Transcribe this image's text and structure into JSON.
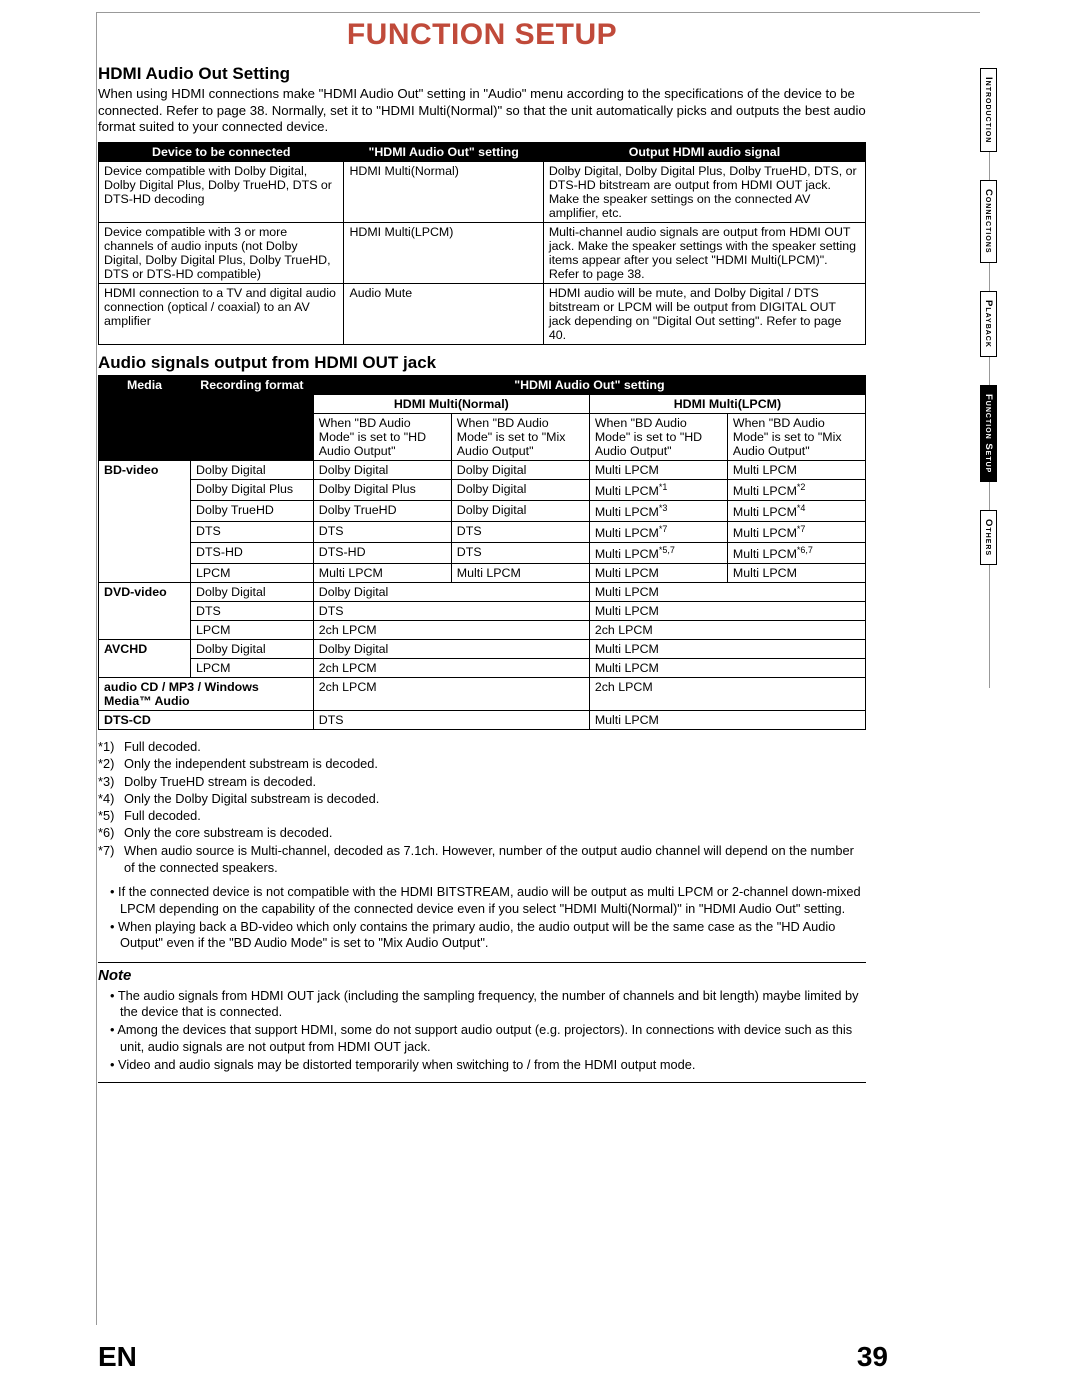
{
  "page": {
    "title": "FUNCTION SETUP",
    "lang_code": "EN",
    "page_number": "39"
  },
  "side_nav": {
    "items": [
      {
        "label": "Introduction",
        "active": false
      },
      {
        "label": "Connections",
        "active": false
      },
      {
        "label": "Playback",
        "active": false
      },
      {
        "label": "Function Setup",
        "active": true
      },
      {
        "label": "Others",
        "active": false
      }
    ]
  },
  "hdmi": {
    "heading": "HDMI Audio Out Setting",
    "intro": "When using HDMI connections make \"HDMI Audio Out\" setting in \"Audio\" menu according to the specifications of the device to be connected. Refer to page 38. Normally, set it to \"HDMI Multi(Normal)\" so that the unit automatically picks and outputs the best audio format suited to your connected device.",
    "table": {
      "headers": [
        "Device to be connected",
        "\"HDMI Audio Out\" setting",
        "Output HDMI audio signal"
      ],
      "rows": [
        {
          "c1": "Device compatible with Dolby Digital, Dolby Digital Plus, Dolby TrueHD, DTS or DTS-HD decoding",
          "c2": "HDMI Multi(Normal)",
          "c3": "Dolby Digital, Dolby Digital Plus, Dolby TrueHD, DTS, or DTS-HD bitstream are output from HDMI OUT jack. Make the speaker settings on the connected AV amplifier, etc."
        },
        {
          "c1": "Device compatible with 3 or more channels of audio inputs (not Dolby Digital, Dolby Digital Plus, Dolby TrueHD, DTS or DTS-HD compatible)",
          "c2": "HDMI Multi(LPCM)",
          "c3": "Multi-channel audio signals are output from HDMI OUT jack. Make the speaker settings with the speaker setting items appear after you select \"HDMI Multi(LPCM)\". Refer to page 38."
        },
        {
          "c1": "HDMI connection to a TV and digital audio connection (optical / coaxial) to an AV amplifier",
          "c2": "Audio Mute",
          "c3": "HDMI audio will be mute, and Dolby Digital / DTS bitstream or LPCM will be output from DIGITAL OUT jack depending on \"Digital Out setting\". Refer to page 40."
        }
      ]
    }
  },
  "signals": {
    "heading": "Audio signals output from HDMI OUT jack",
    "top_header": "\"HDMI Audio Out\" setting",
    "sub_headers": [
      "HDMI Multi(Normal)",
      "HDMI Multi(LPCM)"
    ],
    "col_media": "Media",
    "col_rec": "Recording format",
    "mode_hd": "When \"BD Audio Mode\" is set to \"HD Audio Output\"",
    "mode_mix": "When \"BD Audio Mode\" is set to \"Mix Audio Output\"",
    "groups": [
      {
        "media": "BD-video",
        "rows": [
          {
            "rec": "Dolby Digital",
            "n1": "Dolby Digital",
            "n2": "Dolby Digital",
            "l1": "Multi LPCM",
            "l2": "Multi LPCM"
          },
          {
            "rec": "Dolby Digital Plus",
            "n1": "Dolby Digital Plus",
            "n2": "Dolby Digital",
            "l1": "Multi LPCM",
            "l1s": "*1",
            "l2": "Multi LPCM",
            "l2s": "*2"
          },
          {
            "rec": "Dolby TrueHD",
            "n1": "Dolby TrueHD",
            "n2": "Dolby Digital",
            "l1": "Multi LPCM",
            "l1s": "*3",
            "l2": "Multi LPCM",
            "l2s": "*4"
          },
          {
            "rec": "DTS",
            "n1": "DTS",
            "n2": "DTS",
            "l1": "Multi LPCM",
            "l1s": "*7",
            "l2": "Multi LPCM",
            "l2s": "*7"
          },
          {
            "rec": "DTS-HD",
            "n1": "DTS-HD",
            "n2": "DTS",
            "l1": "Multi LPCM",
            "l1s": "*5,7",
            "l2": "Multi LPCM",
            "l2s": "*6,7"
          },
          {
            "rec": "LPCM",
            "n1": "Multi LPCM",
            "n2": "Multi LPCM",
            "l1": "Multi LPCM",
            "l2": "Multi LPCM"
          }
        ]
      },
      {
        "media": "DVD-video",
        "rows": [
          {
            "rec": "Dolby Digital",
            "n": "Dolby Digital",
            "l": "Multi LPCM"
          },
          {
            "rec": "DTS",
            "n": "DTS",
            "l": "Multi LPCM"
          },
          {
            "rec": "LPCM",
            "n": "2ch LPCM",
            "l": "2ch LPCM"
          }
        ]
      },
      {
        "media": "AVCHD",
        "rows": [
          {
            "rec": "Dolby Digital",
            "n": "Dolby Digital",
            "l": "Multi LPCM"
          },
          {
            "rec": "LPCM",
            "n": "2ch LPCM",
            "l": "Multi LPCM"
          }
        ]
      },
      {
        "media": "audio CD / MP3 / Windows Media™ Audio",
        "single": {
          "n": "2ch LPCM",
          "l": "2ch LPCM"
        }
      },
      {
        "media": "DTS-CD",
        "single": {
          "n": "DTS",
          "l": "Multi LPCM"
        }
      }
    ],
    "footnotes": [
      {
        "k": "*1)",
        "v": "Full decoded."
      },
      {
        "k": "*2)",
        "v": "Only the independent substream is decoded."
      },
      {
        "k": "*3)",
        "v": "Dolby TrueHD stream is decoded."
      },
      {
        "k": "*4)",
        "v": "Only the Dolby Digital substream is decoded."
      },
      {
        "k": "*5)",
        "v": "Full decoded."
      },
      {
        "k": "*6)",
        "v": "Only the core substream is decoded."
      },
      {
        "k": "*7)",
        "v": "When audio source is Multi-channel, decoded as 7.1ch. However, number of the output audio channel will depend on the number of the connected speakers."
      }
    ],
    "extra_bullets": [
      "If the connected device is not compatible with the HDMI BITSTREAM, audio will be output as multi LPCM or 2-channel down-mixed LPCM depending on the capability of the connected device even if you select \"HDMI Multi(Normal)\" in \"HDMI Audio Out\" setting.",
      "When playing back a BD-video which only contains the primary audio, the audio output will be the same case as the \"HD Audio Output\" even if the \"BD Audio Mode\" is set to \"Mix Audio Output\"."
    ]
  },
  "note_box": {
    "heading": "Note",
    "bullets": [
      "The audio signals from HDMI OUT jack (including the sampling frequency, the number of channels and bit length) maybe limited by the device that is connected.",
      "Among the devices that support HDMI, some do not support audio output (e.g. projectors). In connections with device such as this unit, audio signals are not output from HDMI OUT jack.",
      "Video and audio signals may be distorted temporarily when switching to / from the HDMI output mode."
    ]
  }
}
